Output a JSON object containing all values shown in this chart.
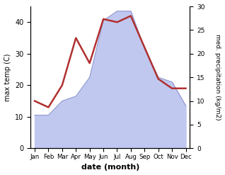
{
  "months": [
    "Jan",
    "Feb",
    "Mar",
    "Apr",
    "May",
    "Jun",
    "Jul",
    "Aug",
    "Sep",
    "Oct",
    "Nov",
    "Dec"
  ],
  "temperature": [
    15,
    13,
    20,
    35,
    27,
    41,
    40,
    42,
    32,
    22,
    19,
    19
  ],
  "precipitation": [
    7,
    7,
    10,
    11,
    15,
    27,
    29,
    29,
    21,
    15,
    14,
    9
  ],
  "temp_color": "#b03030",
  "precip_fill_color": "#c0c8f0",
  "precip_edge_color": "#9098d0",
  "temp_ylim": [
    0,
    45
  ],
  "precip_ylim": [
    0,
    30
  ],
  "temp_yticks": [
    0,
    10,
    20,
    30,
    40
  ],
  "precip_yticks": [
    0,
    5,
    10,
    15,
    20,
    25,
    30
  ],
  "xlabel": "date (month)",
  "ylabel_left": "max temp (C)",
  "ylabel_right": "med. precipitation (kg/m2)",
  "fig_width": 3.18,
  "fig_height": 2.47,
  "dpi": 100
}
